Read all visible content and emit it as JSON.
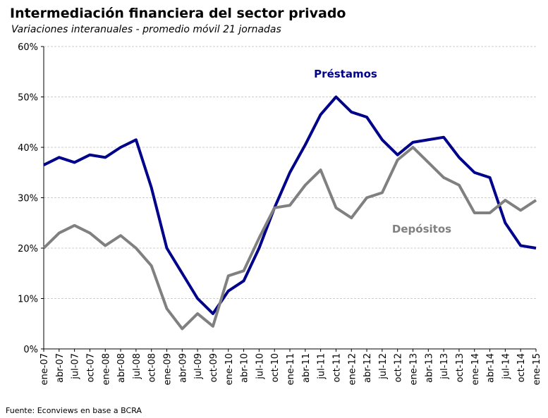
{
  "chart_data": {
    "type": "line",
    "title": "Intermediación financiera del sector privado",
    "subtitle": "Variaciones interanuales - promedio móvil 21 jornadas",
    "source": "Fuente: Econviews en base a BCRA",
    "categories": [
      "ene-07",
      "abr-07",
      "jul-07",
      "oct-07",
      "ene-08",
      "abr-08",
      "jul-08",
      "oct-08",
      "ene-09",
      "abr-09",
      "jul-09",
      "oct-09",
      "ene-10",
      "abr-10",
      "jul-10",
      "oct-10",
      "ene-11",
      "abr-11",
      "jul-11",
      "oct-11",
      "ene-12",
      "abr-12",
      "jul-12",
      "oct-12",
      "ene-13",
      "abr-13",
      "jul-13",
      "oct-13",
      "ene-14",
      "abr-14",
      "jul-14",
      "oct-14",
      "ene-15"
    ],
    "series": [
      {
        "name": "Préstamos",
        "color": "#00008b",
        "values": [
          36.5,
          38,
          37,
          38.5,
          38,
          40,
          41.5,
          32,
          20,
          15,
          10,
          7,
          11.5,
          13.5,
          20,
          28,
          35,
          40.5,
          46.5,
          50,
          47,
          46,
          41.5,
          38.5,
          41,
          41.5,
          42,
          38,
          35,
          34,
          25,
          20.5,
          20
        ]
      },
      {
        "name": "Depósitos",
        "color": "#808080",
        "values": [
          20,
          23,
          24.5,
          23,
          20.5,
          22.5,
          20,
          16.5,
          8,
          4,
          7,
          4.5,
          14.5,
          15.5,
          22,
          28,
          28.5,
          32.5,
          35.5,
          28,
          26,
          30,
          31,
          37.5,
          40,
          37,
          34,
          32.5,
          27,
          27,
          29.5,
          27.5,
          29.5
        ]
      }
    ],
    "ylim": [
      0,
      60
    ],
    "yticks": [
      {
        "value": 0,
        "label": "0%"
      },
      {
        "value": 10,
        "label": "10%"
      },
      {
        "value": 20,
        "label": "20%"
      },
      {
        "value": 30,
        "label": "30%"
      },
      {
        "value": 40,
        "label": "40%"
      },
      {
        "value": 50,
        "label": "50%"
      },
      {
        "value": 60,
        "label": "60%"
      }
    ],
    "grid": true
  }
}
